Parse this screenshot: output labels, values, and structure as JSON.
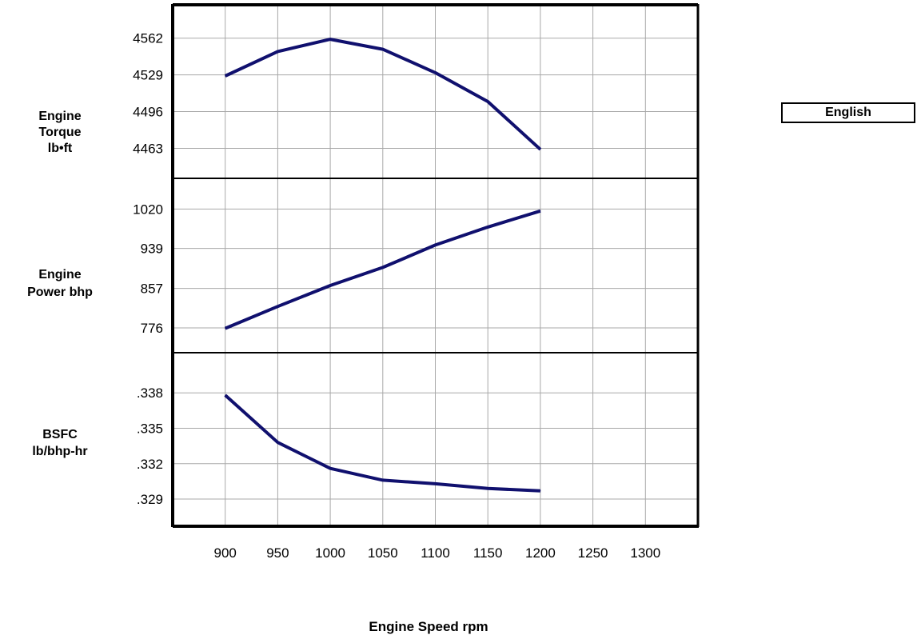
{
  "unit_toggle": {
    "label": "English"
  },
  "chart_data": {
    "type": "line",
    "x_title": "Engine Speed rpm",
    "x_ticks": [
      900,
      950,
      1000,
      1050,
      1100,
      1150,
      1200,
      1250,
      1300
    ],
    "xlim": [
      850,
      1350
    ],
    "grid": true,
    "line_color": "#10106e",
    "panels": [
      {
        "label_lines": [
          "Engine",
          "Torque",
          "lb•ft"
        ],
        "ticks": [
          "4562",
          "4529",
          "4496",
          "4463"
        ],
        "tick_values": [
          4562,
          4529,
          4496,
          4463
        ],
        "ylim": [
          4436,
          4592
        ],
        "x": [
          900,
          950,
          1000,
          1050,
          1100,
          1150,
          1200
        ],
        "y": [
          4528,
          4550,
          4561,
          4552,
          4531,
          4505,
          4462
        ]
      },
      {
        "label_lines": [
          "Engine",
          "Power bhp"
        ],
        "ticks": [
          "1020",
          "939",
          "857",
          "776"
        ],
        "tick_values": [
          1020,
          939,
          857,
          776
        ],
        "ylim": [
          725,
          1083
        ],
        "x": [
          900,
          950,
          1000,
          1050,
          1100,
          1150,
          1200
        ],
        "y": [
          775,
          820,
          863,
          900,
          946,
          983,
          1016
        ]
      },
      {
        "label_lines": [
          "BSFC",
          "lb/bhp-hr"
        ],
        "ticks": [
          ".338",
          ".335",
          ".332",
          ".329"
        ],
        "tick_values": [
          0.338,
          0.335,
          0.332,
          0.329
        ],
        "ylim": [
          0.3267,
          0.3414
        ],
        "x": [
          900,
          950,
          1000,
          1050,
          1100,
          1150,
          1200
        ],
        "y": [
          0.3378,
          0.3338,
          0.3316,
          0.3306,
          0.3303,
          0.3299,
          0.3297
        ]
      }
    ]
  }
}
